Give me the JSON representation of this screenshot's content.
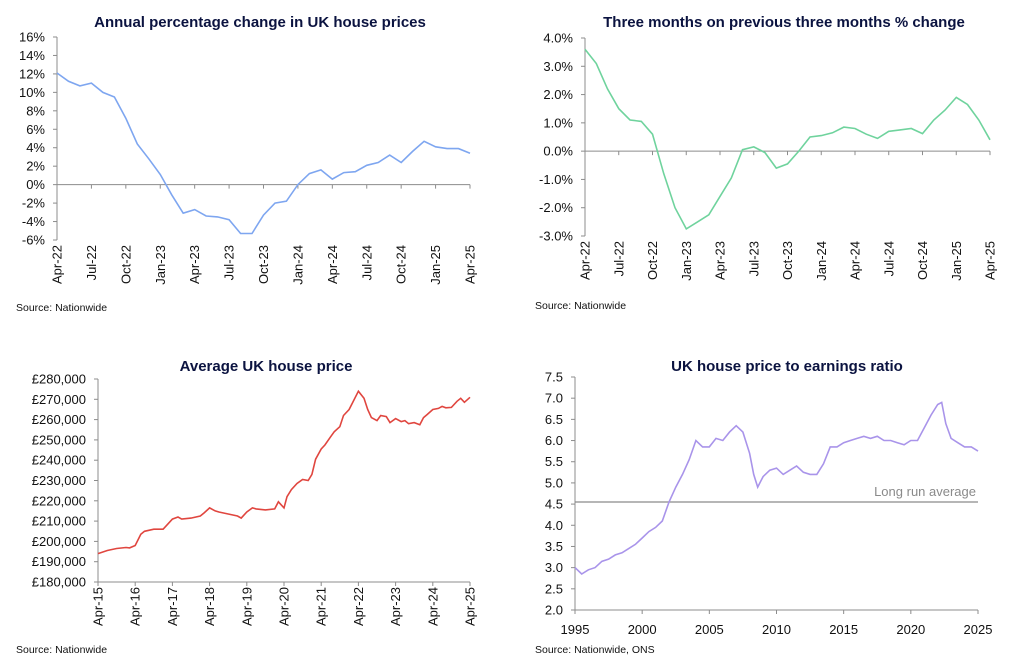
{
  "chart_data": [
    {
      "id": "annual",
      "type": "line",
      "title": "Annual percentage change in UK house prices",
      "source": "Source: Nationwide",
      "color": "#7ea6f0",
      "ylim": [
        -6,
        16
      ],
      "yticks": [
        16,
        14,
        12,
        10,
        8,
        6,
        4,
        2,
        0,
        -2,
        -4,
        -6
      ],
      "y_labels": [
        "16%",
        "14%",
        "12%",
        "10%",
        "8%",
        "6%",
        "4%",
        "2%",
        "0%",
        "-2%",
        "-4%",
        "-6%"
      ],
      "x_labels": [
        "Apr-22",
        "Jul-22",
        "Oct-22",
        "Jan-23",
        "Apr-23",
        "Jul-23",
        "Oct-23",
        "Jan-24",
        "Apr-24",
        "Jul-24",
        "Oct-24",
        "Jan-25",
        "Apr-25"
      ],
      "x_label_index": [
        0,
        3,
        6,
        9,
        12,
        15,
        18,
        21,
        24,
        27,
        30,
        33,
        36
      ],
      "values": [
        12.1,
        11.2,
        10.7,
        11.0,
        10.0,
        9.5,
        7.2,
        4.4,
        2.8,
        1.1,
        -1.1,
        -3.1,
        -2.7,
        -3.4,
        -3.5,
        -3.8,
        -5.3,
        -5.3,
        -3.3,
        -2.0,
        -1.8,
        0.0,
        1.2,
        1.6,
        0.6,
        1.3,
        1.4,
        2.1,
        2.4,
        3.2,
        2.4,
        3.6,
        4.7,
        4.1,
        3.9,
        3.9,
        3.4
      ],
      "zero_line": 0
    },
    {
      "id": "three_month",
      "type": "line",
      "title": "Three months on previous three months % change",
      "source": "Source: Nationwide",
      "color": "#6fd39d",
      "ylim": [
        -3,
        4
      ],
      "yticks": [
        4,
        3,
        2,
        1,
        0,
        -1,
        -2,
        -3
      ],
      "y_labels": [
        "4.0%",
        "3.0%",
        "2.0%",
        "1.0%",
        "0.0%",
        "-1.0%",
        "-2.0%",
        "-3.0%"
      ],
      "x_labels": [
        "Apr-22",
        "Jul-22",
        "Oct-22",
        "Jan-23",
        "Apr-23",
        "Jul-23",
        "Oct-23",
        "Jan-24",
        "Apr-24",
        "Jul-24",
        "Oct-24",
        "Jan-25",
        "Apr-25"
      ],
      "x_label_index": [
        0,
        3,
        6,
        9,
        12,
        15,
        18,
        21,
        24,
        27,
        30,
        33,
        36
      ],
      "values": [
        3.6,
        3.1,
        2.2,
        1.5,
        1.1,
        1.05,
        0.6,
        -0.8,
        -2.0,
        -2.75,
        -2.5,
        -2.25,
        -1.6,
        -0.95,
        0.05,
        0.15,
        -0.05,
        -0.6,
        -0.45,
        0.0,
        0.5,
        0.55,
        0.65,
        0.85,
        0.8,
        0.6,
        0.45,
        0.7,
        0.75,
        0.8,
        0.62,
        1.1,
        1.45,
        1.9,
        1.65,
        1.1,
        0.4
      ],
      "zero_line": 0
    },
    {
      "id": "avg_price",
      "type": "line",
      "title": "Average UK house price",
      "source": "Source: Nationwide",
      "color": "#e0463f",
      "ylim": [
        180000,
        280000
      ],
      "yticks": [
        280000,
        270000,
        260000,
        250000,
        240000,
        230000,
        220000,
        210000,
        200000,
        190000,
        180000
      ],
      "y_labels": [
        "£280,000",
        "£270,000",
        "£260,000",
        "£250,000",
        "£240,000",
        "£230,000",
        "£220,000",
        "£210,000",
        "£200,000",
        "£190,000",
        "£180,000"
      ],
      "x_labels": [
        "Apr-15",
        "Apr-16",
        "Apr-17",
        "Apr-18",
        "Apr-19",
        "Apr-20",
        "Apr-21",
        "Apr-22",
        "Apr-23",
        "Apr-24",
        "Apr-25"
      ],
      "x_range": [
        2015.25,
        2025.25
      ],
      "x_label_pos": [
        2015.25,
        2016.25,
        2017.25,
        2018.25,
        2019.25,
        2020.25,
        2021.25,
        2022.25,
        2023.25,
        2024.25,
        2025.25
      ],
      "x": [
        2015.25,
        2015.5,
        2015.75,
        2016.0,
        2016.1,
        2016.25,
        2016.4,
        2016.5,
        2016.75,
        2017.0,
        2017.1,
        2017.25,
        2017.4,
        2017.5,
        2017.75,
        2018.0,
        2018.1,
        2018.25,
        2018.4,
        2018.5,
        2018.75,
        2019.0,
        2019.1,
        2019.25,
        2019.4,
        2019.5,
        2019.75,
        2020.0,
        2020.1,
        2020.25,
        2020.33,
        2020.45,
        2020.6,
        2020.75,
        2020.9,
        2021.0,
        2021.1,
        2021.25,
        2021.35,
        2021.5,
        2021.6,
        2021.75,
        2021.85,
        2022.0,
        2022.1,
        2022.25,
        2022.4,
        2022.5,
        2022.6,
        2022.75,
        2022.85,
        2023.0,
        2023.1,
        2023.25,
        2023.4,
        2023.5,
        2023.6,
        2023.75,
        2023.9,
        2024.0,
        2024.1,
        2024.25,
        2024.4,
        2024.5,
        2024.6,
        2024.75,
        2024.9,
        2025.0,
        2025.1,
        2025.25
      ],
      "values": [
        194000,
        195500,
        196500,
        197000,
        196800,
        198000,
        203500,
        205000,
        206000,
        206000,
        208000,
        211000,
        212000,
        211000,
        211500,
        212500,
        214000,
        216500,
        215000,
        214500,
        213500,
        212500,
        211500,
        214500,
        216500,
        216000,
        215500,
        216000,
        219500,
        216500,
        222000,
        225500,
        228500,
        230500,
        230000,
        233000,
        240500,
        245500,
        247500,
        251500,
        254000,
        256500,
        262000,
        265000,
        268500,
        274000,
        270500,
        265000,
        261000,
        259500,
        262000,
        261500,
        258500,
        260500,
        259000,
        259500,
        258000,
        258500,
        257500,
        261000,
        262500,
        265000,
        265500,
        266500,
        265800,
        266000,
        269000,
        270500,
        268500,
        271000
      ],
      "zero_line": null
    },
    {
      "id": "ratio",
      "type": "line",
      "title": "UK house price to earnings ratio",
      "source": "Source: Nationwide, ONS",
      "color": "#a994ea",
      "ylim": [
        2.0,
        7.5
      ],
      "yticks": [
        7.5,
        7.0,
        6.5,
        6.0,
        5.5,
        5.0,
        4.5,
        4.0,
        3.5,
        3.0,
        2.5,
        2.0
      ],
      "y_labels": [
        "7.5",
        "7.0",
        "6.5",
        "6.0",
        "5.5",
        "5.0",
        "4.5",
        "4.0",
        "3.5",
        "3.0",
        "2.5",
        "2.0"
      ],
      "x_labels": [
        "1995",
        "2000",
        "2005",
        "2010",
        "2015",
        "2020",
        "2025"
      ],
      "x_range": [
        1995,
        2025
      ],
      "x_label_pos": [
        1995,
        2000,
        2005,
        2010,
        2015,
        2020,
        2025
      ],
      "x": [
        1995,
        1995.5,
        1996,
        1996.5,
        1997,
        1997.5,
        1998,
        1998.5,
        1999,
        1999.5,
        2000,
        2000.5,
        2001,
        2001.5,
        2002,
        2002.5,
        2003,
        2003.5,
        2004,
        2004.5,
        2005,
        2005.5,
        2006,
        2006.5,
        2007,
        2007.5,
        2008,
        2008.3,
        2008.6,
        2009,
        2009.5,
        2010,
        2010.5,
        2011,
        2011.5,
        2012,
        2012.5,
        2013,
        2013.5,
        2014,
        2014.5,
        2015,
        2015.5,
        2016,
        2016.5,
        2017,
        2017.5,
        2018,
        2018.5,
        2019,
        2019.5,
        2020,
        2020.5,
        2021,
        2021.5,
        2022,
        2022.3,
        2022.6,
        2023,
        2023.5,
        2024,
        2024.5,
        2025
      ],
      "values": [
        3.0,
        2.85,
        2.95,
        3.0,
        3.15,
        3.2,
        3.3,
        3.35,
        3.45,
        3.55,
        3.7,
        3.85,
        3.95,
        4.1,
        4.55,
        4.9,
        5.2,
        5.55,
        6.0,
        5.85,
        5.85,
        6.05,
        6.0,
        6.2,
        6.35,
        6.2,
        5.7,
        5.2,
        4.9,
        5.15,
        5.3,
        5.35,
        5.2,
        5.3,
        5.4,
        5.25,
        5.2,
        5.2,
        5.45,
        5.85,
        5.85,
        5.95,
        6.0,
        6.05,
        6.1,
        6.05,
        6.1,
        6.0,
        6.0,
        5.95,
        5.9,
        6.0,
        6.0,
        6.3,
        6.6,
        6.85,
        6.9,
        6.4,
        6.05,
        5.95,
        5.85,
        5.85,
        5.75
      ],
      "zero_line": null,
      "reference_line": 4.55,
      "annotation": "Long run average"
    }
  ]
}
